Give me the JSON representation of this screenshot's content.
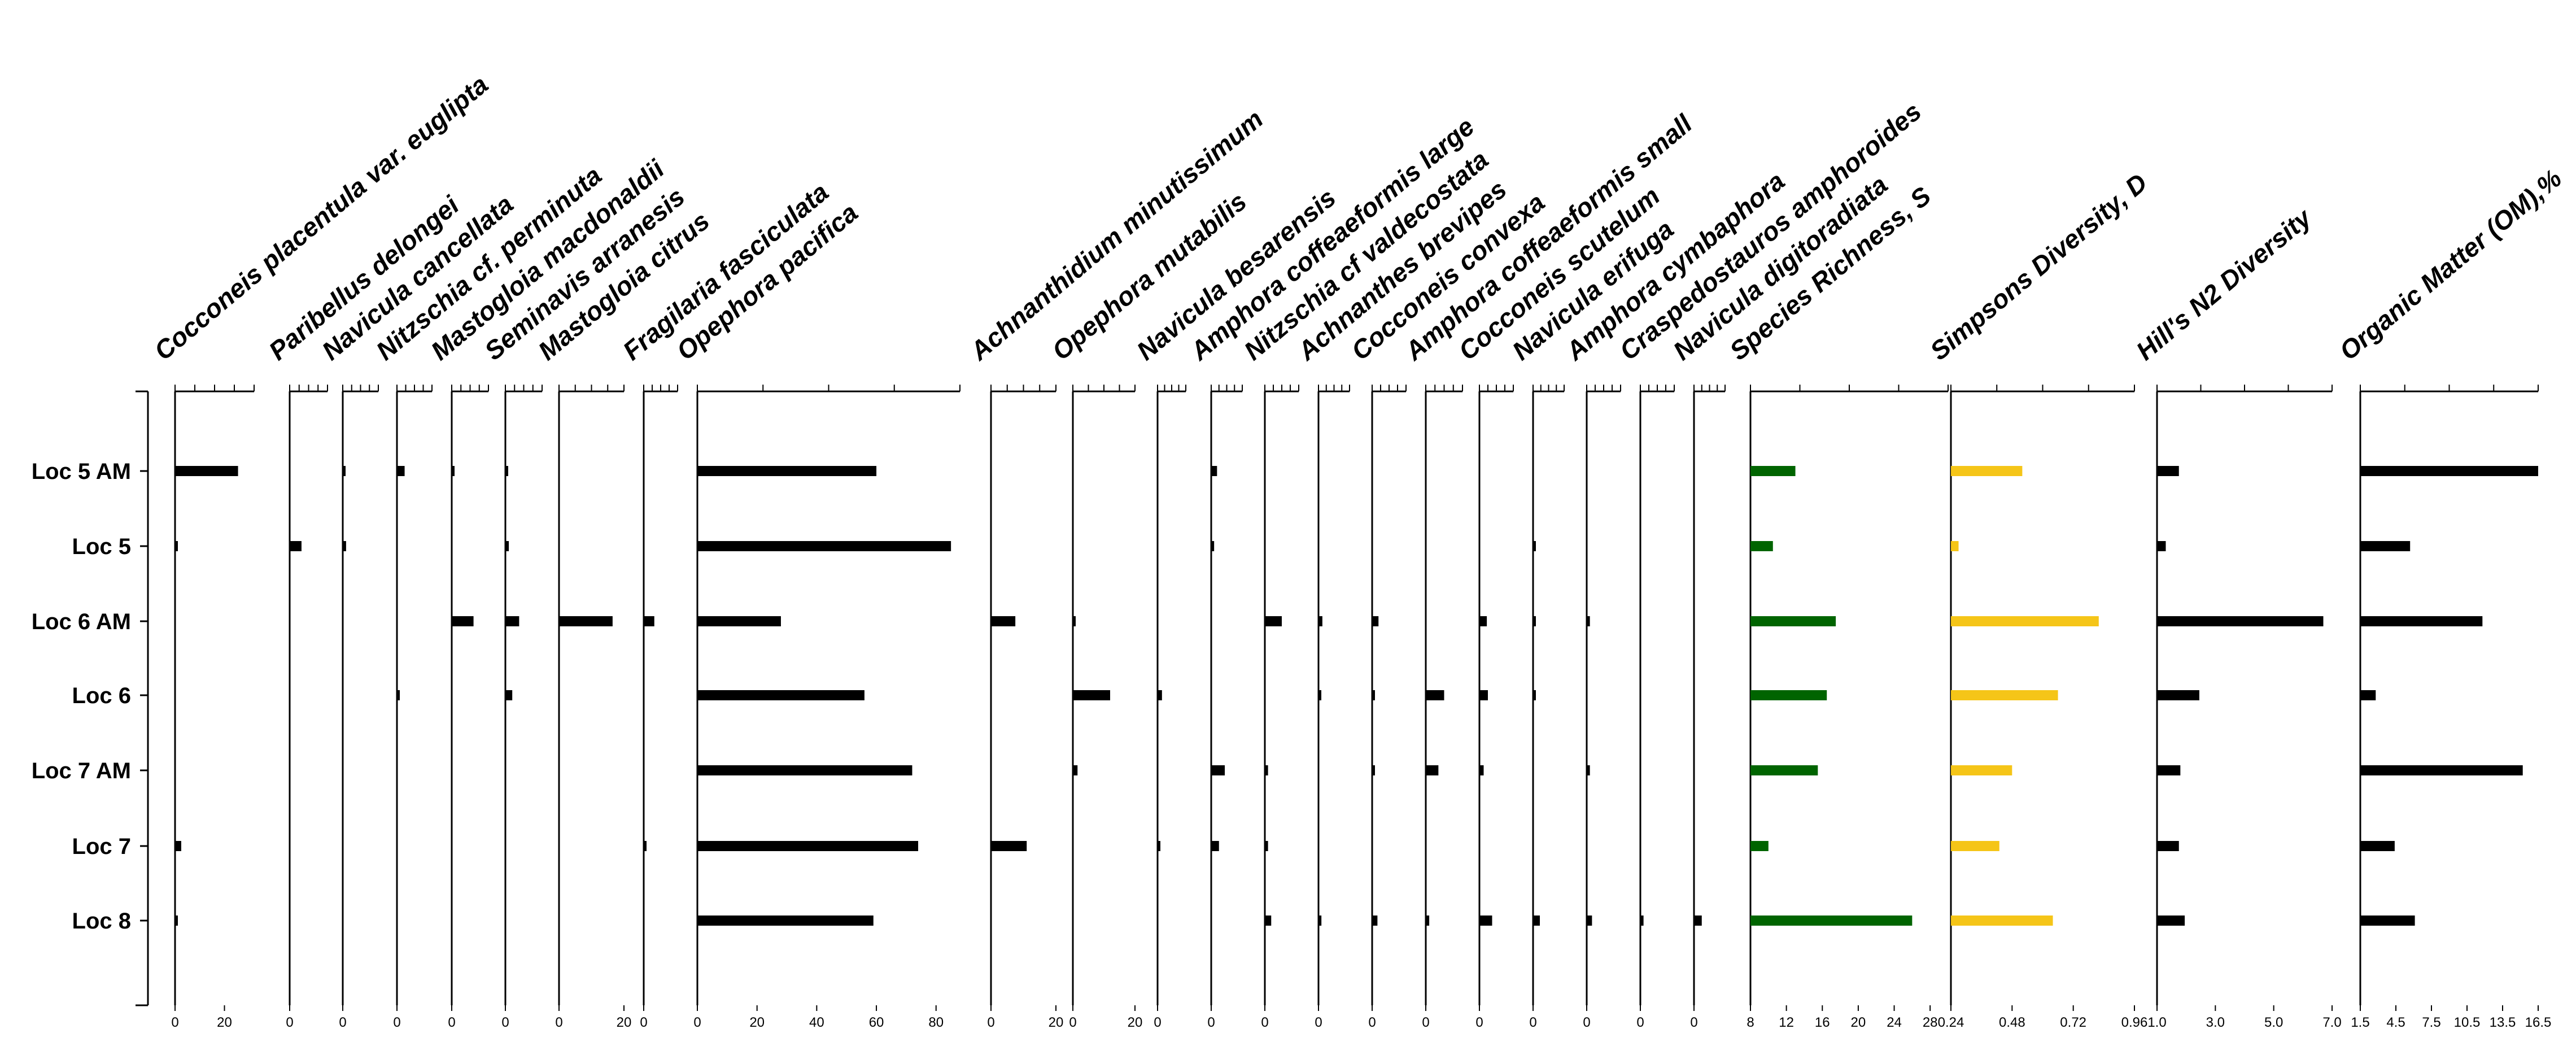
{
  "chart_data": {
    "type": "bar",
    "orientation": "horizontal",
    "categories": [
      "Loc 5 AM",
      "Loc 5",
      "Loc 6 AM",
      "Loc 6",
      "Loc 7 AM",
      "Loc 7",
      "Loc 8"
    ],
    "panels": [
      {
        "name": "Cocconeis placentula var. euglipta",
        "ticks": [
          0,
          20
        ],
        "ticklabels": [
          "0",
          "20"
        ],
        "xlim": [
          0,
          32
        ],
        "values": [
          25.5,
          1,
          0,
          0,
          0,
          2.5,
          0.5
        ],
        "color": "#000000"
      },
      {
        "name": "Paribellus delongei",
        "ticks": [
          0
        ],
        "ticklabels": [
          "0"
        ],
        "xlim": [
          0,
          16
        ],
        "values": [
          0,
          5,
          0,
          0,
          0,
          0,
          0
        ],
        "color": "#000000"
      },
      {
        "name": "Navicula cancellata",
        "ticks": [
          0
        ],
        "ticklabels": [
          "0"
        ],
        "xlim": [
          0,
          16
        ],
        "values": [
          0.5,
          1.5,
          0,
          0,
          0,
          0,
          0
        ],
        "color": "#000000"
      },
      {
        "name": "Nitzschia cf. perminuta",
        "ticks": [
          0
        ],
        "ticklabels": [
          "0"
        ],
        "xlim": [
          0,
          16
        ],
        "values": [
          3.5,
          0,
          0,
          1,
          0,
          0,
          0
        ],
        "color": "#000000"
      },
      {
        "name": "Mastogloia macdonaldii",
        "ticks": [
          0
        ],
        "ticklabels": [
          "0"
        ],
        "xlim": [
          0,
          16
        ],
        "values": [
          0.5,
          0,
          9.5,
          0,
          0,
          0,
          0
        ],
        "color": "#000000"
      },
      {
        "name": "Seminavis arranesis",
        "ticks": [
          0
        ],
        "ticklabels": [
          "0"
        ],
        "xlim": [
          0,
          16
        ],
        "values": [
          1,
          1.5,
          6,
          3,
          0,
          0,
          0
        ],
        "color": "#000000"
      },
      {
        "name": "Mastogloia citrus",
        "ticks": [
          0,
          20
        ],
        "ticklabels": [
          "0",
          "20"
        ],
        "xlim": [
          0,
          20
        ],
        "values": [
          0,
          0,
          16.5,
          0,
          0,
          0,
          0
        ],
        "color": "#000000"
      },
      {
        "name": "Fragilaria fasciculata",
        "ticks": [
          0
        ],
        "ticklabels": [
          "0"
        ],
        "xlim": [
          0,
          16
        ],
        "values": [
          0,
          0,
          5,
          0,
          0,
          0.5,
          0
        ],
        "color": "#000000"
      },
      {
        "name": "Opephora pacifica",
        "ticks": [
          0,
          20,
          40,
          60,
          80
        ],
        "ticklabels": [
          "0",
          "20",
          "40",
          "60",
          "80"
        ],
        "xlim": [
          0,
          88
        ],
        "values": [
          60,
          85,
          28,
          56,
          72,
          74,
          59
        ],
        "color": "#000000"
      },
      {
        "name": "Achnanthidium minutissimum",
        "ticks": [
          0,
          20
        ],
        "ticklabels": [
          "0",
          "20"
        ],
        "xlim": [
          0,
          20
        ],
        "values": [
          0,
          0,
          7.5,
          0,
          0,
          11,
          0
        ],
        "color": "#000000"
      },
      {
        "name": "Opephora mutabilis",
        "ticks": [
          0,
          20
        ],
        "ticklabels": [
          "0",
          "20"
        ],
        "xlim": [
          0,
          20
        ],
        "values": [
          0,
          0,
          0.5,
          12,
          1.5,
          0,
          0
        ],
        "color": "#000000"
      },
      {
        "name": "Navicula besarensis",
        "ticks": [
          0
        ],
        "ticklabels": [
          "0"
        ],
        "xlim": [
          0,
          16
        ],
        "values": [
          0,
          0,
          0,
          2.5,
          0,
          0.5,
          0
        ],
        "color": "#000000"
      },
      {
        "name": "Amphora coffeaeformis  large",
        "ticks": [
          0
        ],
        "ticklabels": [
          "0"
        ],
        "xlim": [
          0,
          16
        ],
        "values": [
          3,
          1.5,
          0,
          0,
          7,
          4,
          0
        ],
        "color": "#000000"
      },
      {
        "name": "Nitzschia cf valdecostata",
        "ticks": [
          0
        ],
        "ticklabels": [
          "0"
        ],
        "xlim": [
          0,
          16
        ],
        "values": [
          0,
          0,
          8,
          0,
          1.5,
          1.5,
          3
        ],
        "color": "#000000"
      },
      {
        "name": "Achnanthes brevipes",
        "ticks": [
          0
        ],
        "ticklabels": [
          "0"
        ],
        "xlim": [
          0,
          16
        ],
        "values": [
          0,
          0,
          2,
          0.5,
          0,
          0,
          1.5
        ],
        "color": "#000000"
      },
      {
        "name": "Cocconeis convexa",
        "ticks": [
          0
        ],
        "ticklabels": [
          "0"
        ],
        "xlim": [
          0,
          16
        ],
        "values": [
          0,
          0,
          3,
          1,
          1,
          0,
          2.5
        ],
        "color": "#000000"
      },
      {
        "name": "Amphora coffeaeformis small",
        "ticks": [
          0
        ],
        "ticklabels": [
          "0"
        ],
        "xlim": [
          0,
          16
        ],
        "values": [
          0,
          0,
          0,
          8,
          5.5,
          0,
          1.5
        ],
        "color": "#000000"
      },
      {
        "name": "Cocconeis scutelum",
        "ticks": [
          0
        ],
        "ticklabels": [
          "0"
        ],
        "xlim": [
          0,
          16
        ],
        "values": [
          0,
          0,
          3.5,
          4,
          2,
          0,
          6
        ],
        "color": "#000000"
      },
      {
        "name": "Navicula erifuga",
        "ticks": [
          0
        ],
        "ticklabels": [
          "0"
        ],
        "xlim": [
          0,
          16
        ],
        "values": [
          0,
          0.5,
          0.5,
          0.5,
          0,
          0,
          3.5
        ],
        "color": "#000000"
      },
      {
        "name": "Amphora cymbaphora",
        "ticks": [
          0
        ],
        "ticklabels": [
          "0"
        ],
        "xlim": [
          0,
          16
        ],
        "values": [
          0,
          0,
          1.5,
          0,
          1.5,
          0,
          2.5
        ],
        "color": "#000000"
      },
      {
        "name": "Craspedostauros amphoroides",
        "ticks": [
          0
        ],
        "ticklabels": [
          "0"
        ],
        "xlim": [
          0,
          16
        ],
        "values": [
          0,
          0,
          0,
          0,
          0,
          0,
          1.5
        ],
        "color": "#000000"
      },
      {
        "name": "Navicula digitoradiata",
        "ticks": [
          0
        ],
        "ticklabels": [
          "0"
        ],
        "xlim": [
          0,
          16
        ],
        "values": [
          0,
          0,
          0,
          0,
          0,
          0,
          4
        ],
        "color": "#000000"
      },
      {
        "name": "Species Richness, S",
        "ticks": [
          8,
          12,
          16,
          20,
          24,
          28
        ],
        "ticklabels": [
          "8",
          "12",
          "16",
          "20",
          "24",
          "28"
        ],
        "xlim": [
          8,
          30
        ],
        "values": [
          13,
          10.5,
          17.5,
          16.5,
          15.5,
          10,
          26
        ],
        "color": "#006400"
      },
      {
        "name": "Simpsons Diversity, D",
        "ticks": [
          0.24,
          0.48,
          0.72,
          0.96
        ],
        "ticklabels": [
          "0.24",
          "0.48",
          "0.72",
          "0.96"
        ],
        "xlim": [
          0.24,
          0.96
        ],
        "values": [
          0.52,
          0.27,
          0.82,
          0.66,
          0.48,
          0.43,
          0.64
        ],
        "color": "#F5C518"
      },
      {
        "name": "Hill's N2 Diversity",
        "ticks": [
          1.0,
          3.0,
          5.0,
          7.0
        ],
        "ticklabels": [
          "1.0",
          "3.0",
          "5.0",
          "7.0"
        ],
        "xlim": [
          1.0,
          7.0
        ],
        "values": [
          1.75,
          1.3,
          6.7,
          2.45,
          1.8,
          1.75,
          1.95
        ],
        "color": "#000000"
      },
      {
        "name": "Organic Matter (OM),%",
        "ticks": [
          1.5,
          4.5,
          7.5,
          10.5,
          13.5,
          16.5
        ],
        "ticklabels": [
          "1.5",
          "4.5",
          "7.5",
          "10.5",
          "13.5",
          "16.5"
        ],
        "xlim": [
          1.5,
          16.5
        ],
        "values": [
          16.5,
          5.7,
          11.8,
          2.8,
          15.2,
          4.4,
          6.1
        ],
        "color": "#000000"
      }
    ],
    "title": "",
    "xlabel": "",
    "ylabel": "",
    "grid": false
  }
}
